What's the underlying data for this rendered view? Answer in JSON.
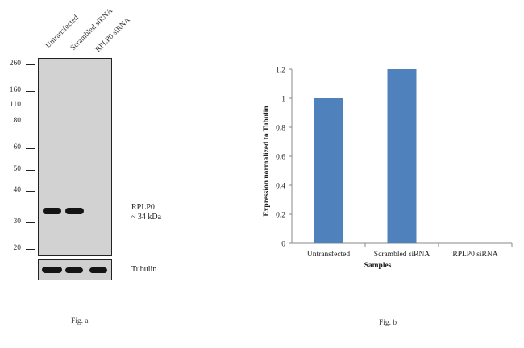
{
  "figure_a": {
    "lanes": [
      "Untransfected",
      "Scrambled siRNA",
      "RPLP0 siRNA"
    ],
    "mw_markers": [
      "260",
      "160",
      "110",
      "80",
      "60",
      "50",
      "40",
      "30",
      "20"
    ],
    "band_label_line1": "RPLP0",
    "band_label_line2": "~ 34 kDa",
    "loading_label": "Tubulin",
    "caption": "Fig. a"
  },
  "figure_b": {
    "caption": "Fig. b"
  },
  "chart_data": {
    "type": "bar",
    "categories": [
      "Untransfected",
      "Scrambled siRNA",
      "RPLP0 siRNA"
    ],
    "values": [
      1.0,
      1.2,
      0.0
    ],
    "xlabel": "Samples",
    "ylabel": "Expression  normalized to Tubulin",
    "ylim": [
      0,
      1.2
    ],
    "yticks": [
      "0",
      "0.2",
      "0.4",
      "0.6",
      "0.8",
      "1",
      "1.2"
    ],
    "bar_color": "#4f81bd",
    "grid": false
  }
}
